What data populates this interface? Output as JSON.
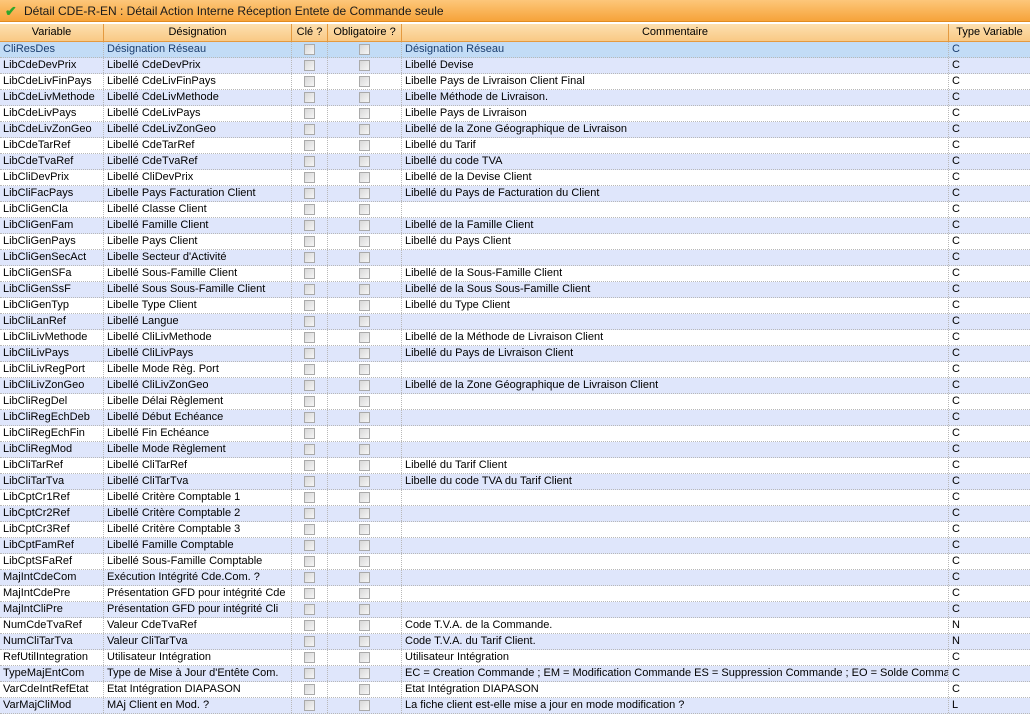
{
  "window": {
    "title": "Détail CDE-R-EN : Détail Action Interne Réception Entete de Commande seule",
    "icon": "checkmark-icon",
    "accent": "#f6a33a"
  },
  "columns": [
    "Variable",
    "Désignation",
    "Clé ?",
    "Obligatoire ?",
    "Commentaire",
    "Type Variable"
  ],
  "selected_row": 0,
  "rows": [
    {
      "variable": "CliResDes",
      "designation": "Désignation Réseau",
      "cle": false,
      "obligatoire": false,
      "commentaire": "Désignation Réseau",
      "type": "C"
    },
    {
      "variable": "LibCdeDevPrix",
      "designation": "Libellé CdeDevPrix",
      "cle": false,
      "obligatoire": false,
      "commentaire": "Libellé Devise",
      "type": "C"
    },
    {
      "variable": "LibCdeLivFinPays",
      "designation": "Libellé CdeLivFinPays",
      "cle": false,
      "obligatoire": false,
      "commentaire": "Libelle Pays de Livraison Client Final",
      "type": "C"
    },
    {
      "variable": "LibCdeLivMethode",
      "designation": "Libellé CdeLivMethode",
      "cle": false,
      "obligatoire": false,
      "commentaire": "Libelle Méthode de Livraison.",
      "type": "C"
    },
    {
      "variable": "LibCdeLivPays",
      "designation": "Libellé CdeLivPays",
      "cle": false,
      "obligatoire": false,
      "commentaire": "Libelle Pays de Livraison",
      "type": "C"
    },
    {
      "variable": "LibCdeLivZonGeo",
      "designation": "Libellé CdeLivZonGeo",
      "cle": false,
      "obligatoire": false,
      "commentaire": "Libellé de la Zone Géographique de Livraison",
      "type": "C"
    },
    {
      "variable": "LibCdeTarRef",
      "designation": "Libellé CdeTarRef",
      "cle": false,
      "obligatoire": false,
      "commentaire": "Libellé du Tarif",
      "type": "C"
    },
    {
      "variable": "LibCdeTvaRef",
      "designation": "Libellé CdeTvaRef",
      "cle": false,
      "obligatoire": false,
      "commentaire": "Libellé du code TVA",
      "type": "C"
    },
    {
      "variable": "LibCliDevPrix",
      "designation": "Libellé CliDevPrix",
      "cle": false,
      "obligatoire": false,
      "commentaire": "Libellé de la Devise Client",
      "type": "C"
    },
    {
      "variable": "LibCliFacPays",
      "designation": "Libelle Pays Facturation Client",
      "cle": false,
      "obligatoire": false,
      "commentaire": "Libellé du Pays de Facturation du Client",
      "type": "C"
    },
    {
      "variable": "LibCliGenCla",
      "designation": "Libellé Classe Client",
      "cle": false,
      "obligatoire": false,
      "commentaire": "",
      "type": "C"
    },
    {
      "variable": "LibCliGenFam",
      "designation": "Libellé Famille Client",
      "cle": false,
      "obligatoire": false,
      "commentaire": "Libellé de la Famille Client",
      "type": "C"
    },
    {
      "variable": "LibCliGenPays",
      "designation": "Libelle Pays Client",
      "cle": false,
      "obligatoire": false,
      "commentaire": "Libellé du Pays Client",
      "type": "C"
    },
    {
      "variable": "LibCliGenSecAct",
      "designation": "Libelle Secteur d'Activité",
      "cle": false,
      "obligatoire": false,
      "commentaire": "",
      "type": "C"
    },
    {
      "variable": "LibCliGenSFa",
      "designation": "Libellé Sous-Famille Client",
      "cle": false,
      "obligatoire": false,
      "commentaire": "Libellé de la Sous-Famille Client",
      "type": "C"
    },
    {
      "variable": "LibCliGenSsF",
      "designation": "Libellé Sous Sous-Famille Client",
      "cle": false,
      "obligatoire": false,
      "commentaire": "Libellé de la Sous Sous-Famille Client",
      "type": "C"
    },
    {
      "variable": "LibCliGenTyp",
      "designation": "Libelle Type Client",
      "cle": false,
      "obligatoire": false,
      "commentaire": "Libellé du Type Client",
      "type": "C"
    },
    {
      "variable": "LibCliLanRef",
      "designation": "Libellé Langue",
      "cle": false,
      "obligatoire": false,
      "commentaire": "",
      "type": "C"
    },
    {
      "variable": "LibCliLivMethode",
      "designation": "Libellé CliLivMethode",
      "cle": false,
      "obligatoire": false,
      "commentaire": "Libellé de la Méthode de Livraison Client",
      "type": "C"
    },
    {
      "variable": "LibCliLivPays",
      "designation": "Libellé CliLivPays",
      "cle": false,
      "obligatoire": false,
      "commentaire": "Libellé du Pays de Livraison Client",
      "type": "C"
    },
    {
      "variable": "LibCliLivRegPort",
      "designation": "Libelle Mode Règ. Port",
      "cle": false,
      "obligatoire": false,
      "commentaire": "",
      "type": "C"
    },
    {
      "variable": "LibCliLivZonGeo",
      "designation": "Libellé CliLivZonGeo",
      "cle": false,
      "obligatoire": false,
      "commentaire": "Libellé de la Zone Géographique de Livraison Client",
      "type": "C"
    },
    {
      "variable": "LibCliRegDel",
      "designation": "Libelle Délai Règlement",
      "cle": false,
      "obligatoire": false,
      "commentaire": "",
      "type": "C"
    },
    {
      "variable": "LibCliRegEchDeb",
      "designation": "Libellé Début Echéance",
      "cle": false,
      "obligatoire": false,
      "commentaire": "",
      "type": "C"
    },
    {
      "variable": "LibCliRegEchFin",
      "designation": "Libellé Fin Echéance",
      "cle": false,
      "obligatoire": false,
      "commentaire": "",
      "type": "C"
    },
    {
      "variable": "LibCliRegMod",
      "designation": "Libelle Mode Règlement",
      "cle": false,
      "obligatoire": false,
      "commentaire": "",
      "type": "C"
    },
    {
      "variable": "LibCliTarRef",
      "designation": "Libellé CliTarRef",
      "cle": false,
      "obligatoire": false,
      "commentaire": "Libellé du Tarif Client",
      "type": "C"
    },
    {
      "variable": "LibCliTarTva",
      "designation": "Libellé CliTarTva",
      "cle": false,
      "obligatoire": false,
      "commentaire": "Libelle du code TVA du Tarif Client",
      "type": "C"
    },
    {
      "variable": "LibCptCr1Ref",
      "designation": "Libellé Critère Comptable 1",
      "cle": false,
      "obligatoire": false,
      "commentaire": "",
      "type": "C"
    },
    {
      "variable": "LibCptCr2Ref",
      "designation": "Libellé Critère Comptable 2",
      "cle": false,
      "obligatoire": false,
      "commentaire": "",
      "type": "C"
    },
    {
      "variable": "LibCptCr3Ref",
      "designation": "Libellé Critère Comptable 3",
      "cle": false,
      "obligatoire": false,
      "commentaire": "",
      "type": "C"
    },
    {
      "variable": "LibCptFamRef",
      "designation": "Libellé Famille Comptable",
      "cle": false,
      "obligatoire": false,
      "commentaire": "",
      "type": "C"
    },
    {
      "variable": "LibCptSFaRef",
      "designation": "Libellé Sous-Famille Comptable",
      "cle": false,
      "obligatoire": false,
      "commentaire": "",
      "type": "C"
    },
    {
      "variable": "MajIntCdeCom",
      "designation": "Exécution Intégrité Cde.Com. ?",
      "cle": false,
      "obligatoire": false,
      "commentaire": "",
      "type": "C"
    },
    {
      "variable": "MajIntCdePre",
      "designation": "Présentation GFD pour intégrité Cde",
      "cle": false,
      "obligatoire": false,
      "commentaire": "",
      "type": "C"
    },
    {
      "variable": "MajIntCliPre",
      "designation": "Présentation GFD pour intégrité Cli",
      "cle": false,
      "obligatoire": false,
      "commentaire": "",
      "type": "C"
    },
    {
      "variable": "NumCdeTvaRef",
      "designation": "Valeur CdeTvaRef",
      "cle": false,
      "obligatoire": false,
      "commentaire": "Code T.V.A. de la Commande.",
      "type": "N"
    },
    {
      "variable": "NumCliTarTva",
      "designation": "Valeur CliTarTva",
      "cle": false,
      "obligatoire": false,
      "commentaire": "Code T.V.A. du Tarif Client.",
      "type": "N"
    },
    {
      "variable": "RefUtilIntegration",
      "designation": "Utilisateur Intégration",
      "cle": false,
      "obligatoire": false,
      "commentaire": "Utilisateur Intégration",
      "type": "C"
    },
    {
      "variable": "TypeMajEntCom",
      "designation": "Type de Mise à Jour d'Entête Com.",
      "cle": false,
      "obligatoire": false,
      "commentaire": "EC = Creation Commande    ; EM = Modification Commande ES = Suppression Commande ; EO = Solde Comman",
      "type": "C"
    },
    {
      "variable": "VarCdeIntRefEtat",
      "designation": "Etat Intégration DIAPASON",
      "cle": false,
      "obligatoire": false,
      "commentaire": "Etat Intégration DIAPASON",
      "type": "C"
    },
    {
      "variable": "VarMajCliMod",
      "designation": "MAj Client en Mod. ?",
      "cle": false,
      "obligatoire": false,
      "commentaire": "La fiche client est-elle mise a jour en mode modification ?",
      "type": "L"
    }
  ]
}
